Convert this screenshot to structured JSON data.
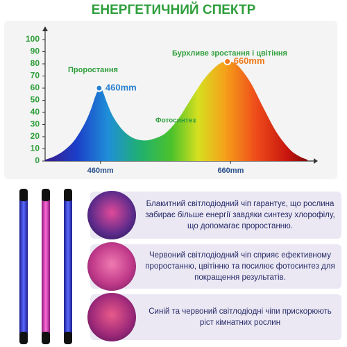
{
  "title": "ЕНЕРГЕТИЧНИЙ СПЕКТР",
  "chart_data": {
    "type": "area",
    "x": [
      375,
      390,
      405,
      420,
      435,
      445,
      452,
      458,
      463,
      470,
      480,
      495,
      510,
      525,
      540,
      560,
      580,
      600,
      620,
      640,
      655,
      670,
      690,
      710,
      730,
      750,
      765,
      778
    ],
    "values": [
      1,
      4,
      9,
      17,
      30,
      42,
      53,
      60,
      58,
      48,
      36,
      25,
      19,
      17,
      18,
      23,
      35,
      52,
      68,
      79,
      82,
      79,
      65,
      44,
      24,
      10,
      4,
      1
    ],
    "xlim": [
      375,
      780
    ],
    "ylim": [
      0,
      100
    ],
    "xticks": [
      {
        "value": 460,
        "label": "460mm"
      },
      {
        "value": 660,
        "label": "660mm"
      }
    ],
    "yticks": [
      0,
      10,
      20,
      30,
      40,
      50,
      60,
      70,
      80,
      90,
      100
    ],
    "annotations": [
      "Проростання",
      "460mm",
      "Фотосинтез",
      "Бурхливе зростання і цвітіння",
      "660mm"
    ]
  },
  "panels": [
    {
      "text": "Блакитний світлодіодний чіп гарантує, що рослина забирає більше енергії завдяки синтезу хлорофілу, що допомагає проростанню."
    },
    {
      "text": "Червоний світлодіодний чіп сприяє ефективному проростанню, цвітінню та посилює фотосинтез для покращення результатів."
    },
    {
      "text": "Синій та червоний світлодіодні чіпи прискорюють ріст кімнатних рослин"
    }
  ]
}
